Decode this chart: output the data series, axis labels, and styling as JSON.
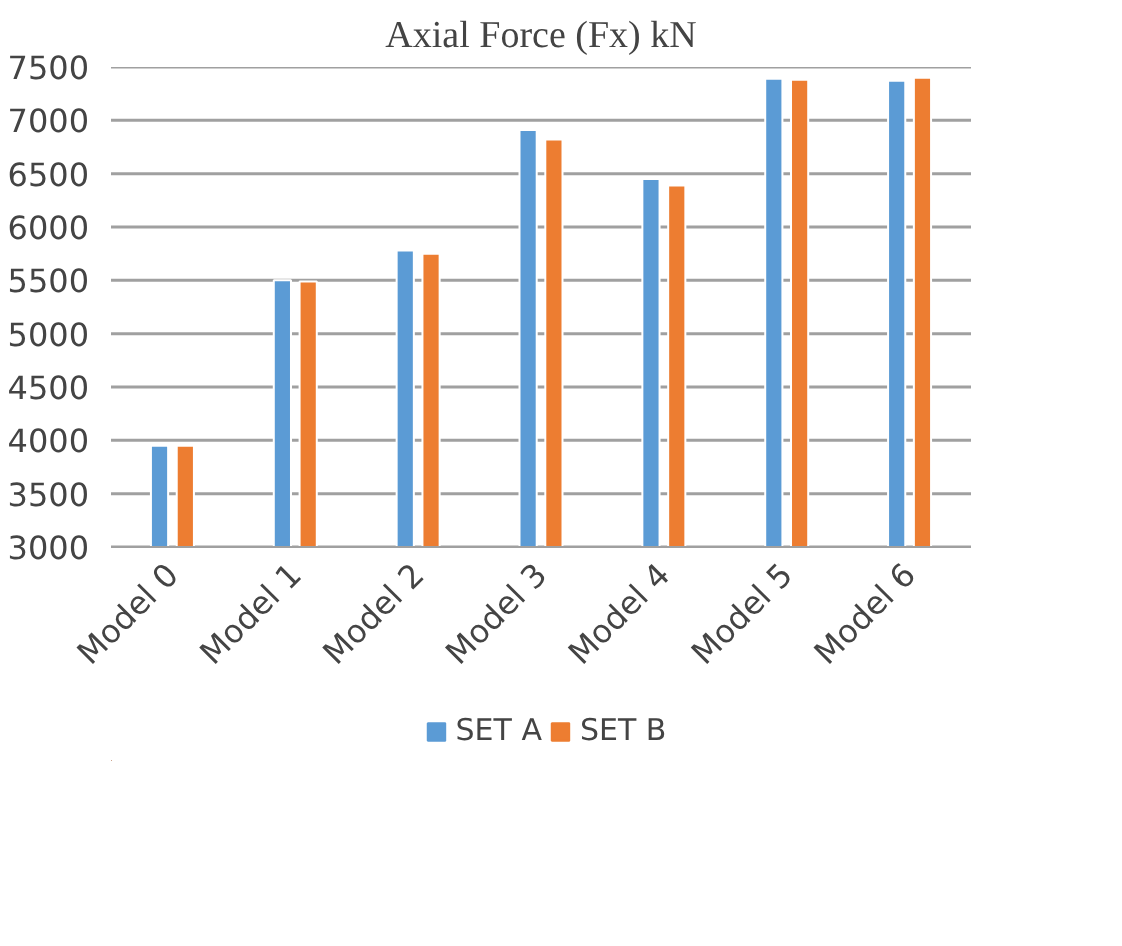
{
  "chart_data": {
    "type": "bar",
    "title": "Axial Force (Fx) kN",
    "categories": [
      "Model 0",
      "Model 1",
      "Model 2",
      "Model 3",
      "Model 4",
      "Model 5",
      "Model 6"
    ],
    "series": [
      {
        "name": "SET A",
        "color": "#5b9bd5",
        "values": [
          3950,
          5500,
          5780,
          6910,
          6450,
          7390,
          7370
        ]
      },
      {
        "name": "SET B",
        "color": "#ed7d31",
        "values": [
          3950,
          5490,
          5750,
          6820,
          6390,
          7380,
          7400
        ]
      }
    ],
    "ylim": [
      3000,
      7500
    ],
    "yticks": [
      3000,
      3500,
      4000,
      4500,
      5000,
      5500,
      6000,
      6500,
      7000,
      7500
    ],
    "grid": "y",
    "legend": "bottom"
  }
}
